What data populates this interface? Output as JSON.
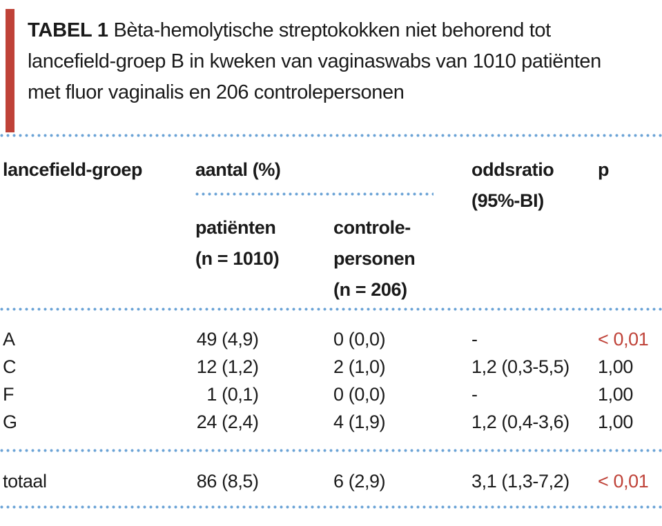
{
  "colors": {
    "accent_red": "#bf4238",
    "dot_blue": "#6ba3d6",
    "text_black": "#1a1a1a",
    "background": "#ffffff"
  },
  "title": {
    "label": "TABEL 1",
    "lines": [
      "Bèta-hemolytische streptokokken niet behorend tot",
      "lancefield-groep B in kweken van vaginaswabs van 1010 patiënten",
      "met fluor vaginalis en 206 controlepersonen"
    ]
  },
  "table": {
    "header": {
      "col_group": "lancefield-groep",
      "col_aantal": "aantal (%)",
      "col_patients_lines": [
        "patiënten",
        "(n = 1010)"
      ],
      "col_controls_lines": [
        "controle-",
        "personen",
        "(n = 206)"
      ],
      "col_oddsratio_lines": [
        "oddsratio",
        "(95%-BI)"
      ],
      "col_p": "p"
    },
    "rows": [
      {
        "group": "A",
        "patients_n": "49",
        "patients_pct": "(4,9)",
        "controls_n": "0",
        "controls_pct": "(0,0)",
        "oddsratio": "-",
        "p": "< 0,01",
        "p_highlight": true
      },
      {
        "group": "C",
        "patients_n": "12",
        "patients_pct": "(1,2)",
        "controls_n": "2",
        "controls_pct": "(1,0)",
        "oddsratio": "1,2 (0,3-5,5)",
        "p": "1,00",
        "p_highlight": false
      },
      {
        "group": "F",
        "patients_n": "1",
        "patients_pct": "(0,1)",
        "controls_n": "0",
        "controls_pct": "(0,0)",
        "oddsratio": "-",
        "p": "1,00",
        "p_highlight": false
      },
      {
        "group": "G",
        "patients_n": "24",
        "patients_pct": "(2,4)",
        "controls_n": "4",
        "controls_pct": "(1,9)",
        "oddsratio": "1,2 (0,4-3,6)",
        "p": "1,00",
        "p_highlight": false
      }
    ],
    "total_row": {
      "group": "totaal",
      "patients_n": "86",
      "patients_pct": "(8,5)",
      "controls_n": "6",
      "controls_pct": "(2,9)",
      "oddsratio": "3,1 (1,3-7,2)",
      "p": "< 0,01",
      "p_highlight": true
    }
  }
}
